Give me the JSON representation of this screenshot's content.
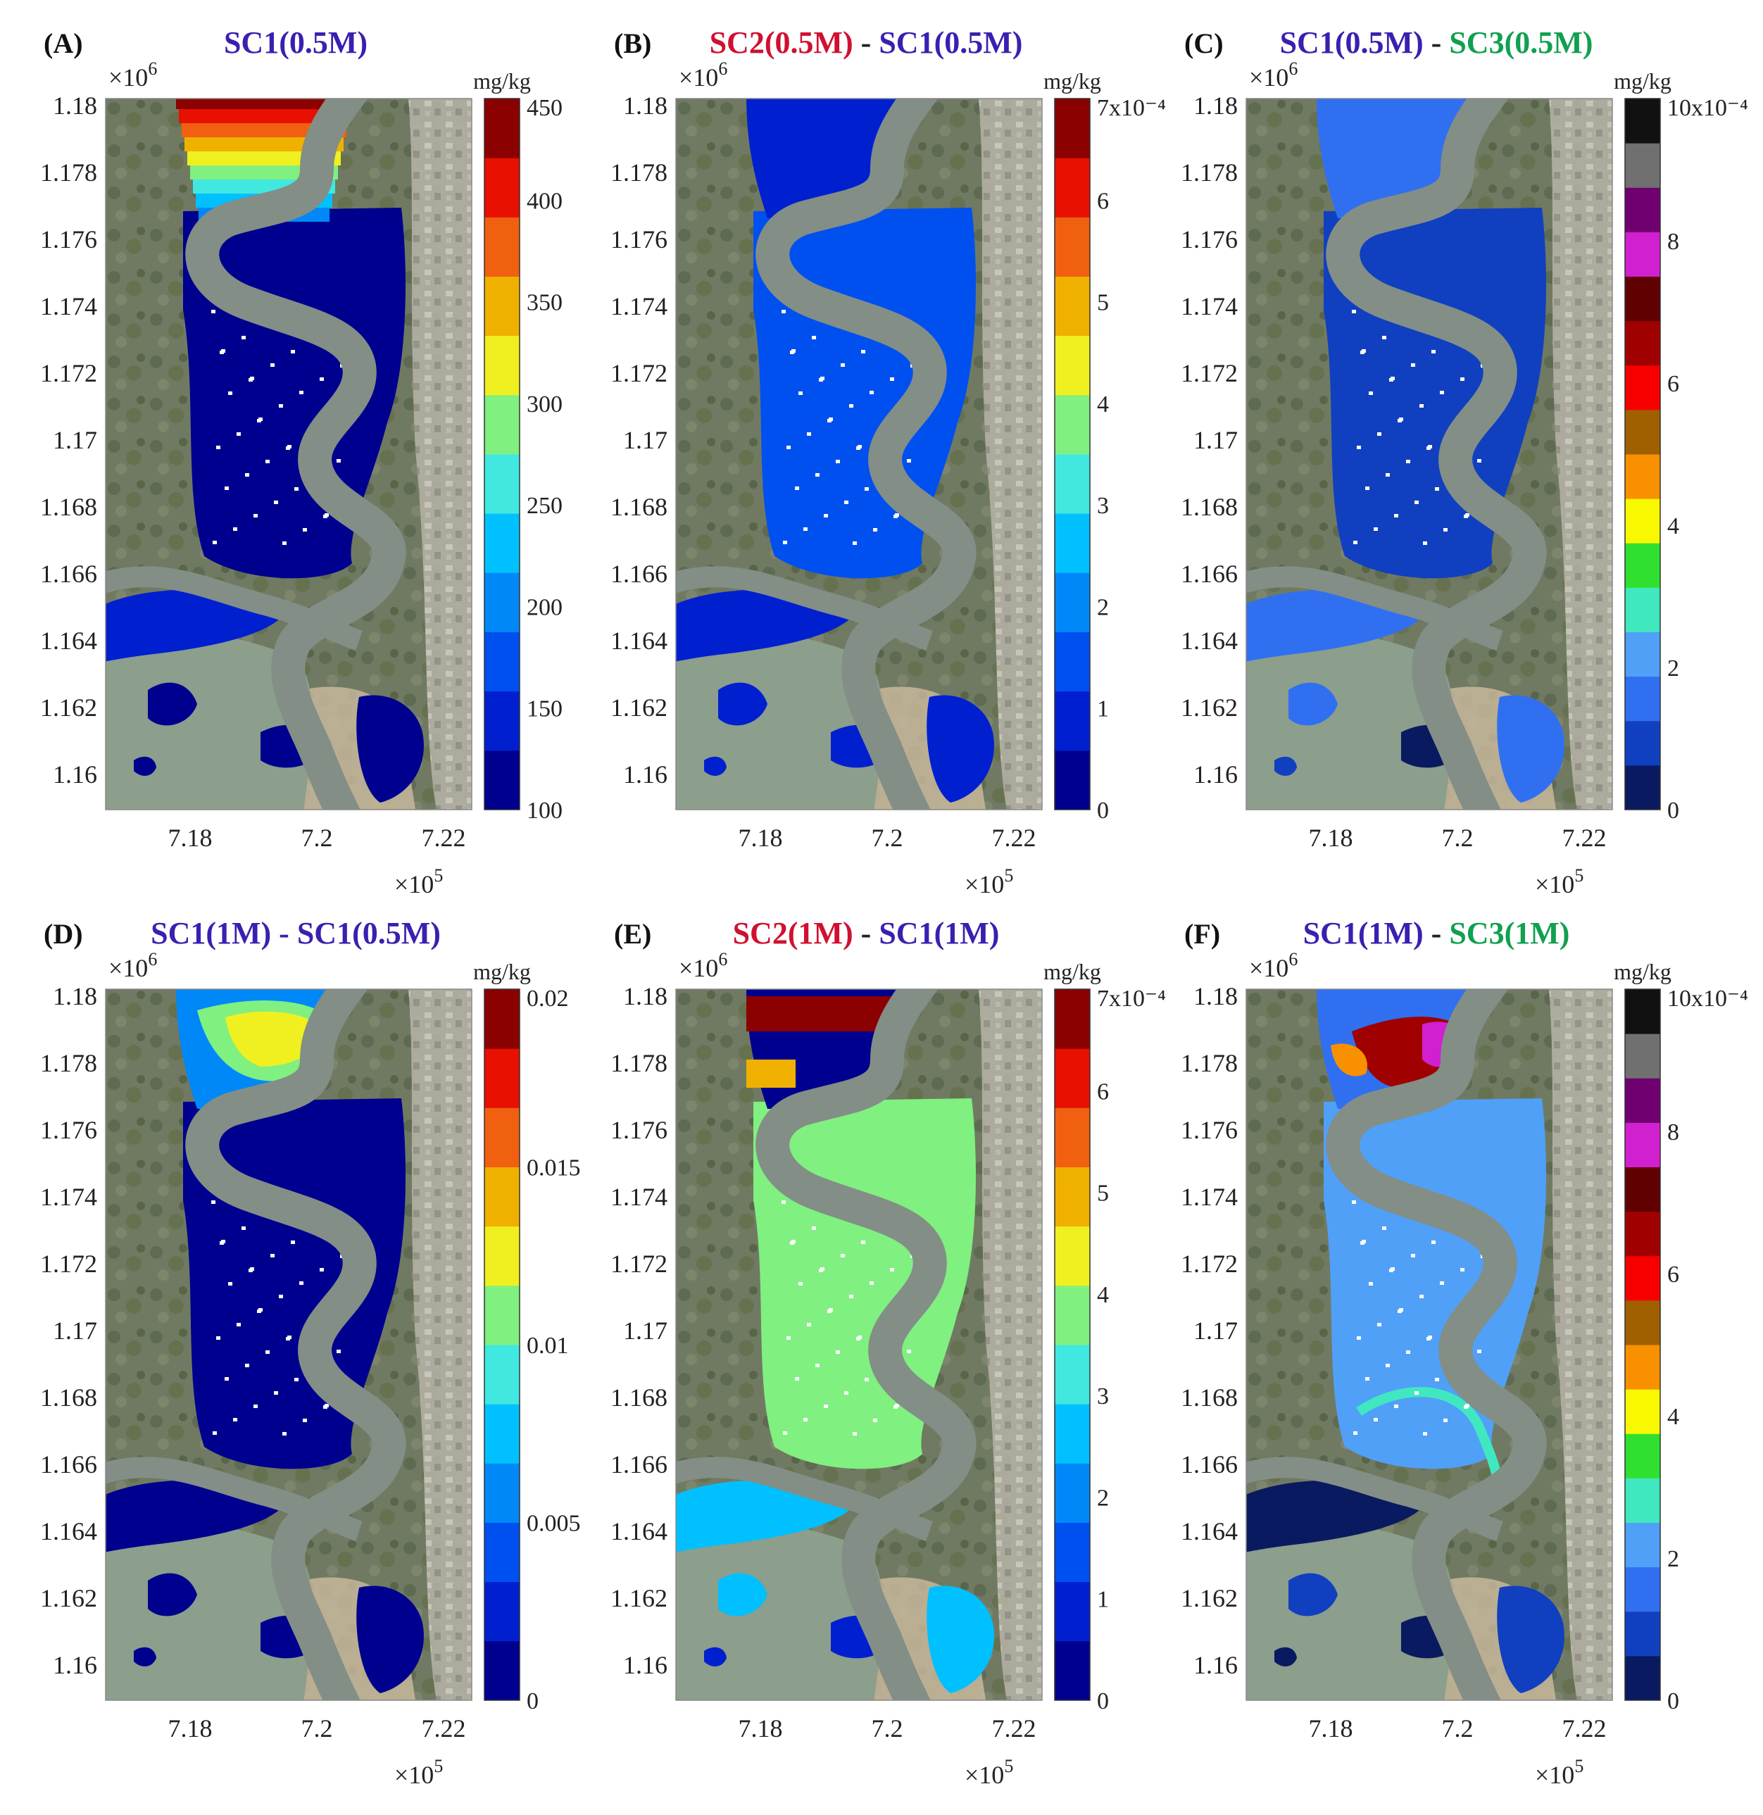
{
  "figure": {
    "panels": [
      {
        "letter": "(A)",
        "title": [
          {
            "text": "SC1(0.5M)",
            "color": "#3b1fb0"
          }
        ],
        "unit": "mg/kg",
        "cbar": {
          "colors": [
            "#00008f",
            "#0020d0",
            "#0050f0",
            "#0088f8",
            "#00c0ff",
            "#40e8e0",
            "#80f080",
            "#f0f020",
            "#f0b000",
            "#f06010",
            "#e81000",
            "#8b0000"
          ],
          "labels": [
            "100",
            "150",
            "200",
            "250",
            "300",
            "350",
            "400",
            "450"
          ]
        },
        "scene": "A",
        "x_ticks": [
          "7.18",
          "7.2",
          "7.22"
        ],
        "y_ticks": [
          "1.18",
          "1.178",
          "1.176",
          "1.174",
          "1.172",
          "1.17",
          "1.168",
          "1.166",
          "1.164",
          "1.162",
          "1.16"
        ],
        "y_exp_base": "×10",
        "y_exp": "6",
        "x_exp_base": "×10",
        "x_exp": "5"
      },
      {
        "letter": "(B)",
        "title": [
          {
            "text": "SC2(0.5M)",
            "color": "#d01030"
          },
          {
            "text": " - ",
            "color": "#222222"
          },
          {
            "text": "SC1(0.5M)",
            "color": "#3b1fb0"
          }
        ],
        "unit": "mg/kg",
        "cbar": {
          "colors": [
            "#00008f",
            "#0020d0",
            "#0050f0",
            "#0088f8",
            "#00c0ff",
            "#40e8e0",
            "#80f080",
            "#f0f020",
            "#f0b000",
            "#f06010",
            "#e81000",
            "#8b0000"
          ],
          "labels": [
            "0",
            "1",
            "2",
            "3",
            "4",
            "5",
            "6",
            "7x10⁻⁴"
          ]
        },
        "scene": "B",
        "x_ticks": [
          "7.18",
          "7.2",
          "7.22"
        ],
        "y_ticks": [
          "1.18",
          "1.178",
          "1.176",
          "1.174",
          "1.172",
          "1.17",
          "1.168",
          "1.166",
          "1.164",
          "1.162",
          "1.16"
        ],
        "y_exp_base": "×10",
        "y_exp": "6",
        "x_exp_base": "×10",
        "x_exp": "5"
      },
      {
        "letter": "(C)",
        "title": [
          {
            "text": "SC1(0.5M)",
            "color": "#3b1fb0"
          },
          {
            "text": " - ",
            "color": "#222222"
          },
          {
            "text": "SC3(0.5M)",
            "color": "#10a050"
          }
        ],
        "unit": "mg/kg",
        "cbar": {
          "colors": [
            "#0a1a60",
            "#1040c0",
            "#3070f0",
            "#50a0f8",
            "#40e8c0",
            "#30e030",
            "#f8f800",
            "#f89000",
            "#a06000",
            "#f80000",
            "#a00000",
            "#600000",
            "#d020d0",
            "#700070",
            "#707070",
            "#111111"
          ],
          "labels": [
            "0",
            "2",
            "4",
            "6",
            "8",
            "10x10⁻⁴"
          ]
        },
        "scene": "C",
        "x_ticks": [
          "7.18",
          "7.2",
          "7.22"
        ],
        "y_ticks": [
          "1.18",
          "1.178",
          "1.176",
          "1.174",
          "1.172",
          "1.17",
          "1.168",
          "1.166",
          "1.164",
          "1.162",
          "1.16"
        ],
        "y_exp_base": "×10",
        "y_exp": "6",
        "x_exp_base": "×10",
        "x_exp": "5"
      },
      {
        "letter": "(D)",
        "title": [
          {
            "text": "SC1(1M) - SC1(0.5M)",
            "color": "#3b1fb0"
          }
        ],
        "unit": "mg/kg",
        "cbar": {
          "colors": [
            "#00008f",
            "#0020d0",
            "#0050f0",
            "#0088f8",
            "#00c0ff",
            "#40e8e0",
            "#80f080",
            "#f0f020",
            "#f0b000",
            "#f06010",
            "#e81000",
            "#8b0000"
          ],
          "labels": [
            "0",
            "0.005",
            "0.01",
            "0.015",
            "0.02"
          ]
        },
        "scene": "D",
        "x_ticks": [
          "7.18",
          "7.2",
          "7.22"
        ],
        "y_ticks": [
          "1.18",
          "1.178",
          "1.176",
          "1.174",
          "1.172",
          "1.17",
          "1.168",
          "1.166",
          "1.164",
          "1.162",
          "1.16"
        ],
        "y_exp_base": "×10",
        "y_exp": "6",
        "x_exp_base": "×10",
        "x_exp": "5"
      },
      {
        "letter": "(E)",
        "title": [
          {
            "text": "SC2(1M)",
            "color": "#d01030"
          },
          {
            "text": " - ",
            "color": "#222222"
          },
          {
            "text": "SC1(1M)",
            "color": "#3b1fb0"
          }
        ],
        "unit": "mg/kg",
        "cbar": {
          "colors": [
            "#00008f",
            "#0020d0",
            "#0050f0",
            "#0088f8",
            "#00c0ff",
            "#40e8e0",
            "#80f080",
            "#f0f020",
            "#f0b000",
            "#f06010",
            "#e81000",
            "#8b0000"
          ],
          "labels": [
            "0",
            "1",
            "2",
            "3",
            "4",
            "5",
            "6",
            "7x10⁻⁴"
          ]
        },
        "scene": "E",
        "x_ticks": [
          "7.18",
          "7.2",
          "7.22"
        ],
        "y_ticks": [
          "1.18",
          "1.178",
          "1.176",
          "1.174",
          "1.172",
          "1.17",
          "1.168",
          "1.166",
          "1.164",
          "1.162",
          "1.16"
        ],
        "y_exp_base": "×10",
        "y_exp": "6",
        "x_exp_base": "×10",
        "x_exp": "5"
      },
      {
        "letter": "(F)",
        "title": [
          {
            "text": "SC1(1M)",
            "color": "#3b1fb0"
          },
          {
            "text": " - ",
            "color": "#222222"
          },
          {
            "text": "SC3(1M)",
            "color": "#10a050"
          }
        ],
        "unit": "mg/kg",
        "cbar": {
          "colors": [
            "#0a1a60",
            "#1040c0",
            "#3070f0",
            "#50a0f8",
            "#40e8c0",
            "#30e030",
            "#f8f800",
            "#f89000",
            "#a06000",
            "#f80000",
            "#a00000",
            "#600000",
            "#d020d0",
            "#700070",
            "#707070",
            "#111111"
          ],
          "labels": [
            "0",
            "2",
            "4",
            "6",
            "8",
            "10x10⁻⁴"
          ]
        },
        "scene": "F",
        "x_ticks": [
          "7.18",
          "7.2",
          "7.22"
        ],
        "y_ticks": [
          "1.18",
          "1.178",
          "1.176",
          "1.174",
          "1.172",
          "1.17",
          "1.168",
          "1.166",
          "1.164",
          "1.162",
          "1.16"
        ],
        "y_exp_base": "×10",
        "y_exp": "6",
        "x_exp_base": "×10",
        "x_exp": "5"
      }
    ]
  }
}
